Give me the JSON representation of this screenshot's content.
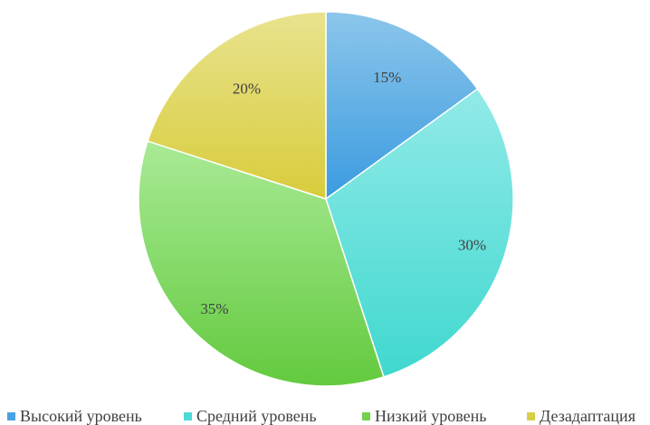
{
  "chart_data": {
    "type": "pie",
    "title": "",
    "categories": [
      "Высокий уровень",
      "Средний уровень",
      "Низкий уровень",
      "Дезадаптация"
    ],
    "values": [
      15,
      30,
      35,
      20
    ],
    "labels": [
      "15%",
      "30%",
      "35%",
      "20%"
    ],
    "colors": [
      "#4aa3e0",
      "#4ddad6",
      "#74d24e",
      "#d9cf46"
    ],
    "legend_position": "bottom",
    "start_angle": "12 o'clock",
    "direction": "clockwise"
  }
}
